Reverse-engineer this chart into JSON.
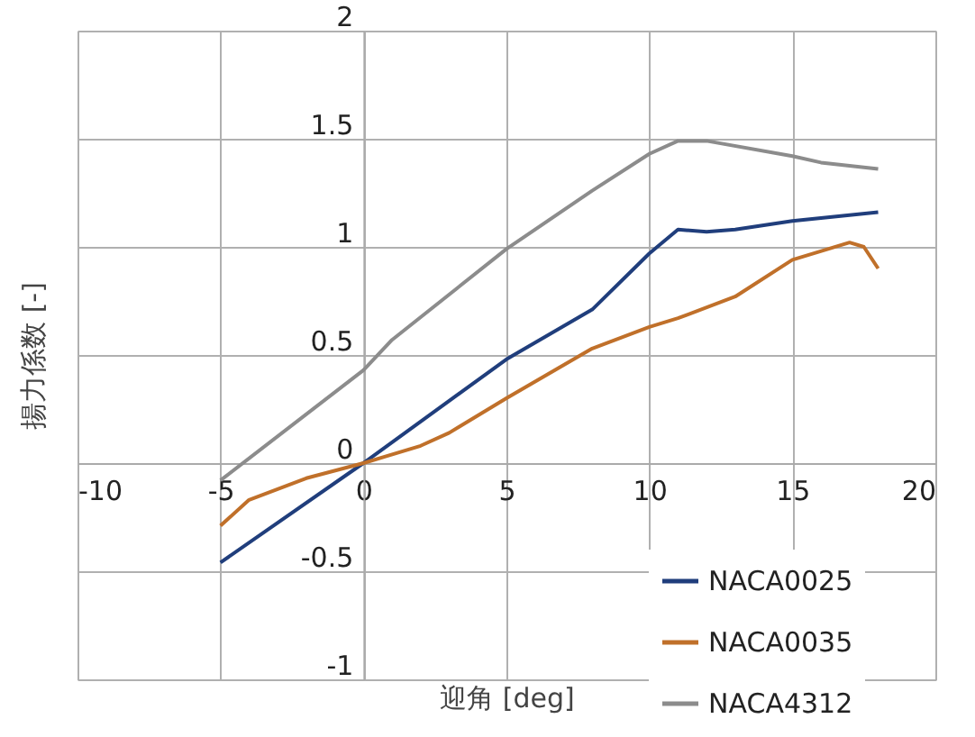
{
  "chart_data": {
    "type": "line",
    "xlabel": "迎角 [deg]",
    "ylabel": "揚力係数 [-]",
    "xlim": [
      -10,
      20
    ],
    "xticks": [
      -10,
      -5,
      0,
      5,
      10,
      15,
      20
    ],
    "ylim": [
      -1,
      2
    ],
    "yticks": [
      -1,
      -0.5,
      0,
      0.5,
      1,
      1.5,
      2
    ],
    "grid": true,
    "legend": "bottom right",
    "marker": "none",
    "line_style": "solid",
    "series": [
      {
        "name": "NACA0025",
        "color": "#203e7c",
        "x": [
          -5,
          0,
          5,
          8,
          10,
          11,
          12,
          13,
          15,
          18
        ],
        "values": [
          -0.46,
          0,
          0.48,
          0.71,
          0.97,
          1.08,
          1.07,
          1.08,
          1.12,
          1.16
        ]
      },
      {
        "name": "NACA0035",
        "color": "#c0702a",
        "x": [
          -5,
          -4,
          -2,
          0,
          2,
          3,
          5,
          8,
          10,
          11,
          13,
          15,
          17,
          17.5,
          18
        ],
        "values": [
          -0.29,
          -0.17,
          -0.07,
          0,
          0.08,
          0.14,
          0.3,
          0.53,
          0.63,
          0.67,
          0.77,
          0.94,
          1.02,
          1.0,
          0.9
        ]
      },
      {
        "name": "NACA4312",
        "color": "#8c8c8c",
        "x": [
          -5,
          0,
          1,
          5,
          8,
          10,
          11,
          12,
          15,
          16,
          18
        ],
        "values": [
          -0.08,
          0.43,
          0.57,
          0.99,
          1.26,
          1.43,
          1.49,
          1.49,
          1.42,
          1.39,
          1.36
        ]
      }
    ]
  }
}
